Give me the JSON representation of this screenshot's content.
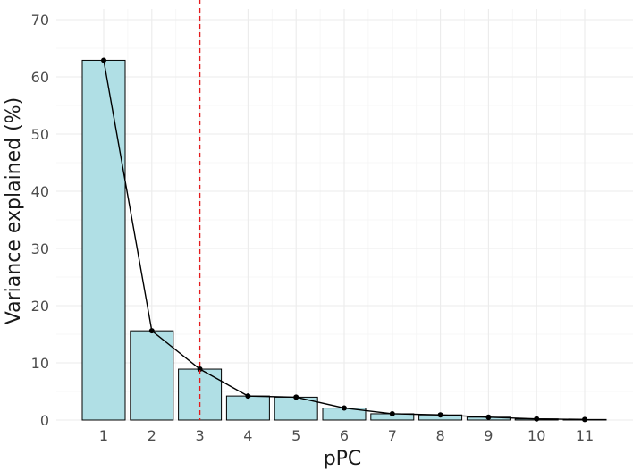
{
  "chart_data": {
    "type": "bar",
    "categories": [
      "1",
      "2",
      "3",
      "4",
      "5",
      "6",
      "7",
      "8",
      "9",
      "10",
      "11"
    ],
    "values": [
      62.9,
      15.6,
      8.9,
      4.2,
      4.0,
      2.1,
      1.1,
      0.9,
      0.5,
      0.2,
      0.1
    ],
    "line_overlay": true,
    "reference_line": {
      "x": "3",
      "style": "dashed",
      "color": "#e41a1c"
    },
    "xlabel": "pPC",
    "ylabel": "Variance explained (%)",
    "ylim": [
      0,
      70
    ],
    "yticks": [
      0,
      10,
      20,
      30,
      40,
      50,
      60,
      70
    ],
    "grid": true,
    "legend": "none",
    "colors": {
      "bar_fill": "#b0dfe5",
      "bar_stroke": "#000000",
      "line": "#000000",
      "point": "#000000"
    }
  }
}
